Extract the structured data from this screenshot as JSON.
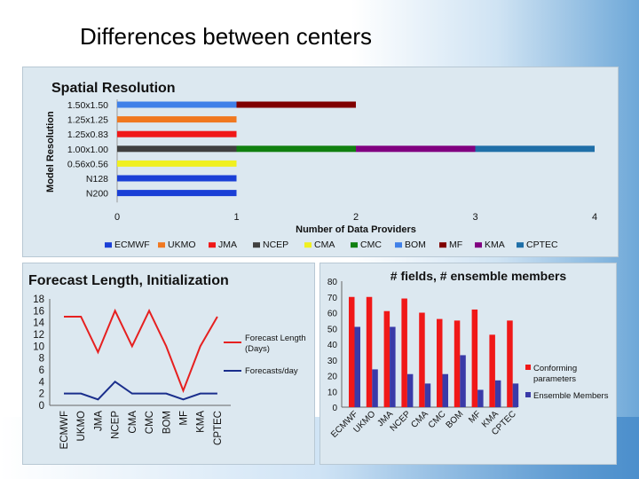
{
  "page": {
    "title": "Differences between centers"
  },
  "colors": {
    "ECMWF": "#1a3fd6",
    "UKMO": "#f07820",
    "JMA": "#f01818",
    "NCEP": "#404040",
    "CMA": "#f0f020",
    "CMC": "#108010",
    "BOM": "#4080e8",
    "MF": "#800000",
    "KMA": "#800080",
    "CPTEC": "#1f6fa8"
  },
  "chart_data": [
    {
      "type": "bar",
      "orientation": "horizontal",
      "title": "Spatial Resolution",
      "xlabel": "Number of Data Providers",
      "ylabel": "Model Resolution",
      "xlim": [
        0,
        4
      ],
      "xticks": [
        "0",
        "1",
        "2",
        "3",
        "4"
      ],
      "categories": [
        "1.50x1.50",
        "1.25x1.25",
        "1.25x0.83",
        "1.00x1.00",
        "0.56x0.56",
        "N128",
        "N200"
      ],
      "stacks": [
        [
          "BOM",
          "MF"
        ],
        [
          "UKMO"
        ],
        [
          "JMA"
        ],
        [
          "NCEP",
          "CMC",
          "KMA",
          "CPTEC"
        ],
        [
          "CMA"
        ],
        [
          "ECMWF"
        ],
        [
          "ECMWF"
        ]
      ],
      "legend": [
        "ECMWF",
        "UKMO",
        "JMA",
        "NCEP",
        "CMA",
        "CMC",
        "BOM",
        "MF",
        "KMA",
        "CPTEC"
      ]
    },
    {
      "type": "line",
      "title": "Forecast Length, Initialization",
      "categories": [
        "ECMWF",
        "UKMO",
        "JMA",
        "NCEP",
        "CMA",
        "CMC",
        "BOM",
        "MF",
        "KMA",
        "CPTEC"
      ],
      "ylim": [
        0,
        18
      ],
      "yticks": [
        "0",
        "2",
        "4",
        "6",
        "8",
        "10",
        "12",
        "14",
        "16",
        "18"
      ],
      "series": [
        {
          "name": "Forecast Length (Days)",
          "color": "#e62020",
          "values": [
            15,
            15,
            9,
            16,
            10,
            16,
            10,
            2.5,
            10,
            15
          ]
        },
        {
          "name": "Forecasts/day",
          "color": "#1a2e8c",
          "values": [
            2,
            2,
            1,
            4,
            2,
            2,
            2,
            1,
            2,
            2
          ]
        }
      ]
    },
    {
      "type": "bar",
      "title": "# fields, # ensemble members",
      "categories": [
        "ECMWF",
        "UKMO",
        "JMA",
        "NCEP",
        "CMA",
        "CMC",
        "BOM",
        "MF",
        "KMA",
        "CPTEC"
      ],
      "ylim": [
        0,
        80
      ],
      "yticks": [
        "0",
        "10",
        "20",
        "30",
        "40",
        "50",
        "60",
        "70",
        "80"
      ],
      "series": [
        {
          "name": "Conforming parameters",
          "color": "#f01818",
          "values": [
            70,
            70,
            61,
            69,
            60,
            56,
            55,
            62,
            46,
            55
          ]
        },
        {
          "name": "Ensemble Members",
          "color": "#3a3aa8",
          "values": [
            51,
            24,
            51,
            21,
            15,
            21,
            33,
            11,
            17,
            15
          ]
        }
      ]
    }
  ]
}
